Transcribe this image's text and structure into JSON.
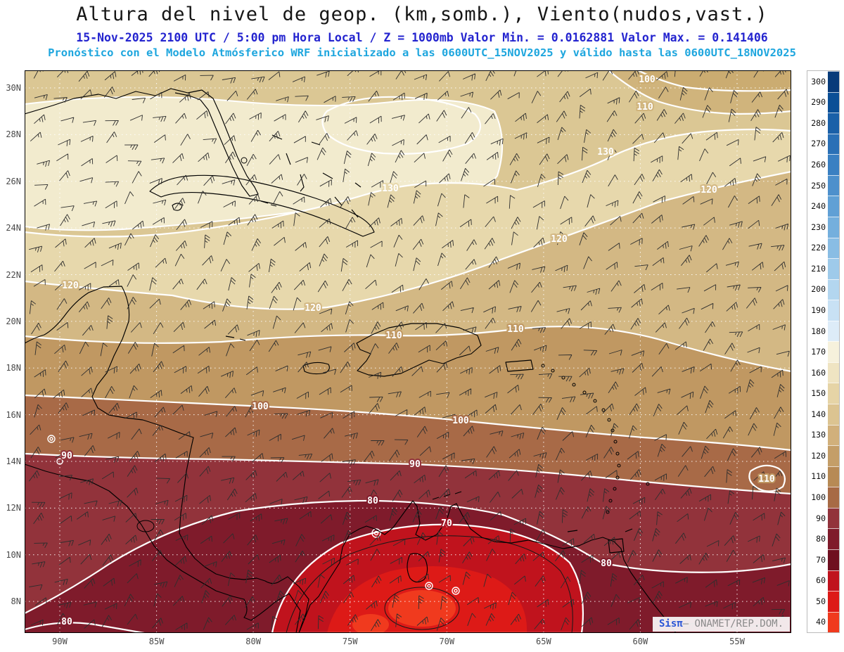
{
  "title": "Altura del nivel de geop. (km,somb.), Viento(nudos,vast.)",
  "subtitle_line1": "15-Nov-2025  2100 UTC / 5:00 pm Hora Local / Z = 1000mb Valor Min. = 0.0162881  Valor Max. = 0.141406",
  "subtitle_line2": "Pronóstico con el Modelo Atmósferico WRF inicializado a las 0600UTC_15NOV2025 y válido hasta las  0600UTC_18NOV2025",
  "watermark": {
    "brand": "Sisπ",
    "org": "— ONAMET/REP.DOM."
  },
  "chart_data": {
    "type": "heatmap",
    "subtype": "filled-contour weather map with wind barbs",
    "title": "Altura del nivel de geop. (km,somb.), Viento(nudos,vast.)",
    "field": "Geopotential height at 1000mb (km, shaded); wind in knots (barbs)",
    "model_run": {
      "date": "15-Nov-2025",
      "time_utc": "2100 UTC",
      "local_time": "5:00 pm Hora Local",
      "level": "Z = 1000mb",
      "value_min": 0.0162881,
      "value_max": 0.141406,
      "model": "WRF",
      "initialized": "0600UTC_15NOV2025",
      "valid_until": "0600UTC_18NOV2025"
    },
    "x_ticks": [
      "90W",
      "85W",
      "80W",
      "75W",
      "70W",
      "65W",
      "60W",
      "55W"
    ],
    "y_ticks": [
      "30N",
      "28N",
      "26N",
      "24N",
      "22N",
      "20N",
      "18N",
      "16N",
      "14N",
      "12N",
      "10N",
      "8N"
    ],
    "colorbar": {
      "levels": [
        300,
        290,
        280,
        270,
        260,
        250,
        240,
        230,
        220,
        210,
        200,
        190,
        180,
        170,
        160,
        150,
        140,
        130,
        120,
        110,
        100,
        90,
        80,
        70,
        60,
        50,
        40
      ],
      "colors": [
        "#083b7a",
        "#0b4f96",
        "#1a60a8",
        "#2a70b6",
        "#3a80c2",
        "#4d90cc",
        "#60a0d5",
        "#74afdd",
        "#89bde4",
        "#9ecaea",
        "#b3d6ef",
        "#c8e1f4",
        "#ddecf8",
        "#f6f1dc",
        "#efe4c2",
        "#e6d4a6",
        "#dcc491",
        "#d1b07b",
        "#c49e68",
        "#b78a55",
        "#a76a45",
        "#92333b",
        "#7f1b2b",
        "#6f1020",
        "#c0131d",
        "#dd1a17",
        "#f03a1e"
      ]
    },
    "shaded_bands": [
      {
        "range": "140-150 base",
        "color": "#dbc794"
      },
      {
        "range": "110-120 NE corner",
        "color": "#d0b47c"
      },
      {
        "range": "100-110 NE corner",
        "color": "#cbac71"
      },
      {
        "range": "150-170 ridge",
        "color": "#f2ebce"
      },
      {
        "range": "120-130",
        "color": "#e7d8ac"
      },
      {
        "range": "110-120",
        "color": "#d3b884"
      },
      {
        "range": "100-110",
        "color": "#c09862"
      },
      {
        "range": "90-100",
        "color": "#a86a47"
      },
      {
        "range": "80-90",
        "color": "#92333b"
      },
      {
        "range": "70-80",
        "color": "#7f1b2b"
      },
      {
        "range": "60-70",
        "color": "#c0131d"
      },
      {
        "range": "50-60",
        "color": "#dd1a17"
      },
      {
        "range": "40-50",
        "color": "#f03a1e"
      }
    ],
    "contour_labels": [
      {
        "value": "130",
        "x": 520,
        "y": 168,
        "halo": "#e7d8ac"
      },
      {
        "value": "130",
        "x": 826,
        "y": 116,
        "halo": "#dbc794"
      },
      {
        "value": "120",
        "x": 65,
        "y": 306,
        "halo": "#d3b884"
      },
      {
        "value": "120",
        "x": 410,
        "y": 338,
        "halo": "#d3b884"
      },
      {
        "value": "120",
        "x": 760,
        "y": 240,
        "halo": "#d3b884"
      },
      {
        "value": "120",
        "x": 973,
        "y": 170,
        "halo": "#d3b884"
      },
      {
        "value": "110",
        "x": 525,
        "y": 377,
        "halo": "#c09862"
      },
      {
        "value": "110",
        "x": 698,
        "y": 368,
        "halo": "#c09862"
      },
      {
        "value": "110",
        "x": 882,
        "y": 52,
        "halo": "#d0b47c"
      },
      {
        "value": "110",
        "x": 1055,
        "y": 581,
        "halo": "#c09862"
      },
      {
        "value": "100",
        "x": 335,
        "y": 478,
        "halo": "#a86a47"
      },
      {
        "value": "100",
        "x": 620,
        "y": 498,
        "halo": "#a86a47"
      },
      {
        "value": "100",
        "x": 885,
        "y": 13,
        "halo": "#cbac71"
      },
      {
        "value": "90",
        "x": 60,
        "y": 548,
        "halo": "#92333b"
      },
      {
        "value": "90",
        "x": 555,
        "y": 560,
        "halo": "#92333b"
      },
      {
        "value": "80",
        "x": 495,
        "y": 612,
        "halo": "#7f1b2b"
      },
      {
        "value": "80",
        "x": 827,
        "y": 701,
        "halo": "#7f1b2b"
      },
      {
        "value": "80",
        "x": 60,
        "y": 784,
        "halo": "#7f1b2b"
      },
      {
        "value": "70",
        "x": 600,
        "y": 644,
        "halo": "#a01424"
      }
    ],
    "legend_position": "right",
    "grid": true
  }
}
